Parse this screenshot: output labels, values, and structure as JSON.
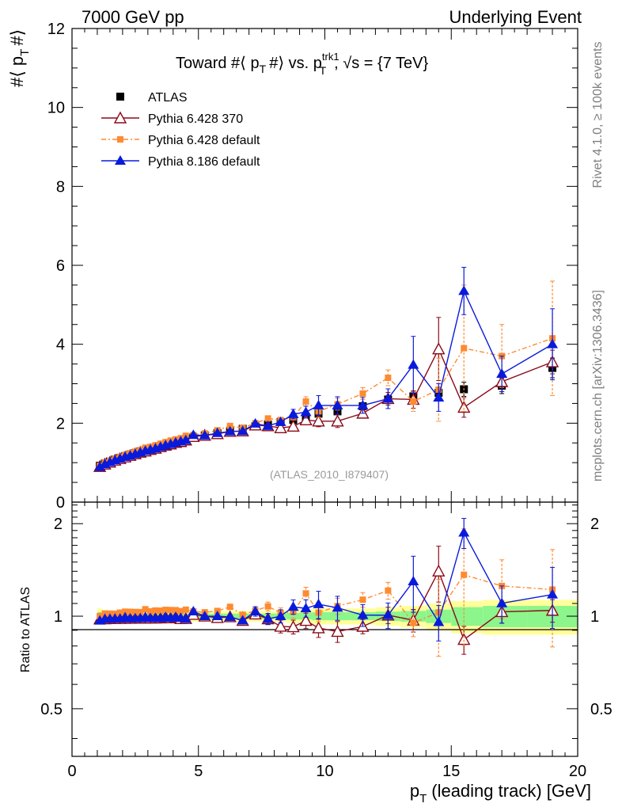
{
  "header": {
    "left": "7000 GeV pp",
    "right": "Underlying Event"
  },
  "side_labels": {
    "rivet": "Rivet 4.1.0, ≥ 100k events",
    "mcplots": "mcplots.cern.ch [arXiv:1306.3436]"
  },
  "analysis_id": "(ATLAS_2010_I879407)",
  "chart_data": {
    "type": "line",
    "title": "Toward #⟨ p_T #⟩ vs. p_T^trk1, √s = {7 TeV}",
    "title_parts": {
      "a": "Toward #⟨ p",
      "a_sub": "T",
      "b": "#⟩ vs. p",
      "b_sup": "trk1",
      "b_sub": "T",
      "c": ", √s = {7 TeV}"
    },
    "xlabel": "p_T (leading track) [GeV]",
    "xlabel_parts": {
      "p": "p",
      "sub": "T",
      "rest": "(leading track) [GeV]"
    },
    "ylabel": "#⟨ p_T #⟩",
    "ylabel_parts": {
      "a": "#⟨ p",
      "sub": "T",
      "b": "#⟩"
    },
    "ratio_ylabel": "Ratio to ATLAS",
    "xlim": [
      0,
      20
    ],
    "ylim": [
      0,
      12
    ],
    "ratio_ylim": [
      0.35,
      2.35
    ],
    "x_ticks": [
      "0",
      "5",
      "10",
      "15",
      "20"
    ],
    "y_ticks": [
      "0",
      "2",
      "4",
      "6",
      "8",
      "10",
      "12"
    ],
    "ratio_ticks": [
      "0.5",
      "1",
      "2"
    ],
    "legend": [
      "ATLAS",
      "Pythia 6.428 370",
      "Pythia 6.428 default",
      "Pythia 8.186 default"
    ],
    "x": [
      1.1,
      1.3,
      1.5,
      1.7,
      1.9,
      2.1,
      2.3,
      2.5,
      2.7,
      2.9,
      3.1,
      3.3,
      3.5,
      3.7,
      3.9,
      4.1,
      4.3,
      4.5,
      4.8,
      5.25,
      5.75,
      6.25,
      6.75,
      7.25,
      7.75,
      8.25,
      8.75,
      9.25,
      9.75,
      10.5,
      11.5,
      12.5,
      13.5,
      14.5,
      15.5,
      17.0,
      19.0
    ],
    "series": [
      {
        "name": "ATLAS",
        "values": [
          0.92,
          0.98,
          1.03,
          1.08,
          1.12,
          1.16,
          1.2,
          1.24,
          1.28,
          1.31,
          1.35,
          1.38,
          1.42,
          1.45,
          1.49,
          1.52,
          1.56,
          1.6,
          1.64,
          1.69,
          1.75,
          1.8,
          1.86,
          1.92,
          1.97,
          2.03,
          2.08,
          2.15,
          2.24,
          2.3,
          2.43,
          2.6,
          2.68,
          2.77,
          2.86,
          2.95,
          3.4
        ],
        "errors": [
          0.02,
          0.02,
          0.02,
          0.02,
          0.02,
          0.02,
          0.02,
          0.02,
          0.02,
          0.02,
          0.02,
          0.02,
          0.02,
          0.02,
          0.02,
          0.02,
          0.02,
          0.02,
          0.03,
          0.03,
          0.03,
          0.03,
          0.03,
          0.04,
          0.04,
          0.05,
          0.05,
          0.06,
          0.07,
          0.07,
          0.08,
          0.1,
          0.12,
          0.15,
          0.18,
          0.2,
          0.25
        ]
      },
      {
        "name": "Pythia 6.428 370",
        "values": [
          0.9,
          0.96,
          1.01,
          1.06,
          1.1,
          1.14,
          1.18,
          1.22,
          1.26,
          1.29,
          1.33,
          1.36,
          1.4,
          1.44,
          1.47,
          1.51,
          1.53,
          1.57,
          1.66,
          1.69,
          1.73,
          1.79,
          1.8,
          1.95,
          1.93,
          1.88,
          1.92,
          2.08,
          2.05,
          2.05,
          2.25,
          2.62,
          2.6,
          3.88,
          2.4,
          3.05,
          3.55
        ],
        "errors": [
          0.02,
          0.02,
          0.02,
          0.02,
          0.02,
          0.02,
          0.02,
          0.02,
          0.02,
          0.02,
          0.02,
          0.02,
          0.02,
          0.02,
          0.02,
          0.02,
          0.02,
          0.02,
          0.03,
          0.03,
          0.03,
          0.04,
          0.05,
          0.07,
          0.08,
          0.09,
          0.1,
          0.12,
          0.14,
          0.16,
          0.12,
          0.16,
          0.22,
          0.8,
          0.25,
          0.25,
          0.3
        ]
      },
      {
        "name": "Pythia 6.428 default",
        "values": [
          0.92,
          1.0,
          1.05,
          1.1,
          1.15,
          1.2,
          1.24,
          1.28,
          1.32,
          1.38,
          1.4,
          1.44,
          1.48,
          1.52,
          1.56,
          1.59,
          1.62,
          1.68,
          1.7,
          1.74,
          1.82,
          1.93,
          1.88,
          2.0,
          2.12,
          2.08,
          2.15,
          2.55,
          2.3,
          2.48,
          2.75,
          3.15,
          2.55,
          2.85,
          3.9,
          3.7,
          4.15
        ],
        "errors": [
          0.02,
          0.02,
          0.02,
          0.02,
          0.02,
          0.02,
          0.02,
          0.02,
          0.02,
          0.02,
          0.02,
          0.02,
          0.02,
          0.02,
          0.02,
          0.02,
          0.02,
          0.02,
          0.03,
          0.03,
          0.04,
          0.05,
          0.05,
          0.06,
          0.07,
          0.08,
          0.1,
          0.12,
          0.15,
          0.15,
          0.15,
          0.2,
          0.25,
          0.8,
          1.6,
          0.8,
          1.45
        ]
      },
      {
        "name": "Pythia 8.186 default",
        "values": [
          0.89,
          0.96,
          1.01,
          1.06,
          1.1,
          1.15,
          1.18,
          1.22,
          1.26,
          1.3,
          1.33,
          1.36,
          1.4,
          1.44,
          1.47,
          1.51,
          1.54,
          1.57,
          1.7,
          1.69,
          1.75,
          1.79,
          1.8,
          1.99,
          1.93,
          2.03,
          2.23,
          2.28,
          2.45,
          2.45,
          2.45,
          2.62,
          3.48,
          2.65,
          5.35,
          3.25,
          4.0
        ],
        "errors": [
          0.02,
          0.02,
          0.02,
          0.02,
          0.02,
          0.02,
          0.02,
          0.02,
          0.02,
          0.02,
          0.02,
          0.02,
          0.02,
          0.02,
          0.02,
          0.02,
          0.02,
          0.02,
          0.03,
          0.03,
          0.04,
          0.05,
          0.05,
          0.07,
          0.08,
          0.1,
          0.12,
          0.15,
          0.25,
          0.22,
          0.2,
          0.25,
          0.72,
          0.35,
          0.6,
          0.45,
          0.9
        ]
      }
    ],
    "band_inner": [
      0.03,
      0.02,
      0.02,
      0.02,
      0.02,
      0.02,
      0.02,
      0.02,
      0.02,
      0.02,
      0.02,
      0.02,
      0.02,
      0.02,
      0.02,
      0.02,
      0.02,
      0.02,
      0.02,
      0.02,
      0.02,
      0.02,
      0.02,
      0.02,
      0.02,
      0.02,
      0.025,
      0.025,
      0.03,
      0.03,
      0.03,
      0.035,
      0.04,
      0.05,
      0.07,
      0.08,
      0.08
    ],
    "band_outer": [
      0.06,
      0.04,
      0.04,
      0.04,
      0.04,
      0.04,
      0.04,
      0.04,
      0.04,
      0.04,
      0.04,
      0.04,
      0.04,
      0.04,
      0.04,
      0.04,
      0.04,
      0.04,
      0.04,
      0.04,
      0.04,
      0.04,
      0.04,
      0.04,
      0.04,
      0.04,
      0.05,
      0.05,
      0.06,
      0.06,
      0.06,
      0.07,
      0.08,
      0.1,
      0.12,
      0.13,
      0.13
    ],
    "colors": {
      "atlas": "#000000",
      "p6_370": "#8b0a1a",
      "p6_default": "#ff8a30",
      "p8": "#0a1adc",
      "band_inner": "#8cf58c",
      "band_outer": "#ffff9a"
    }
  }
}
